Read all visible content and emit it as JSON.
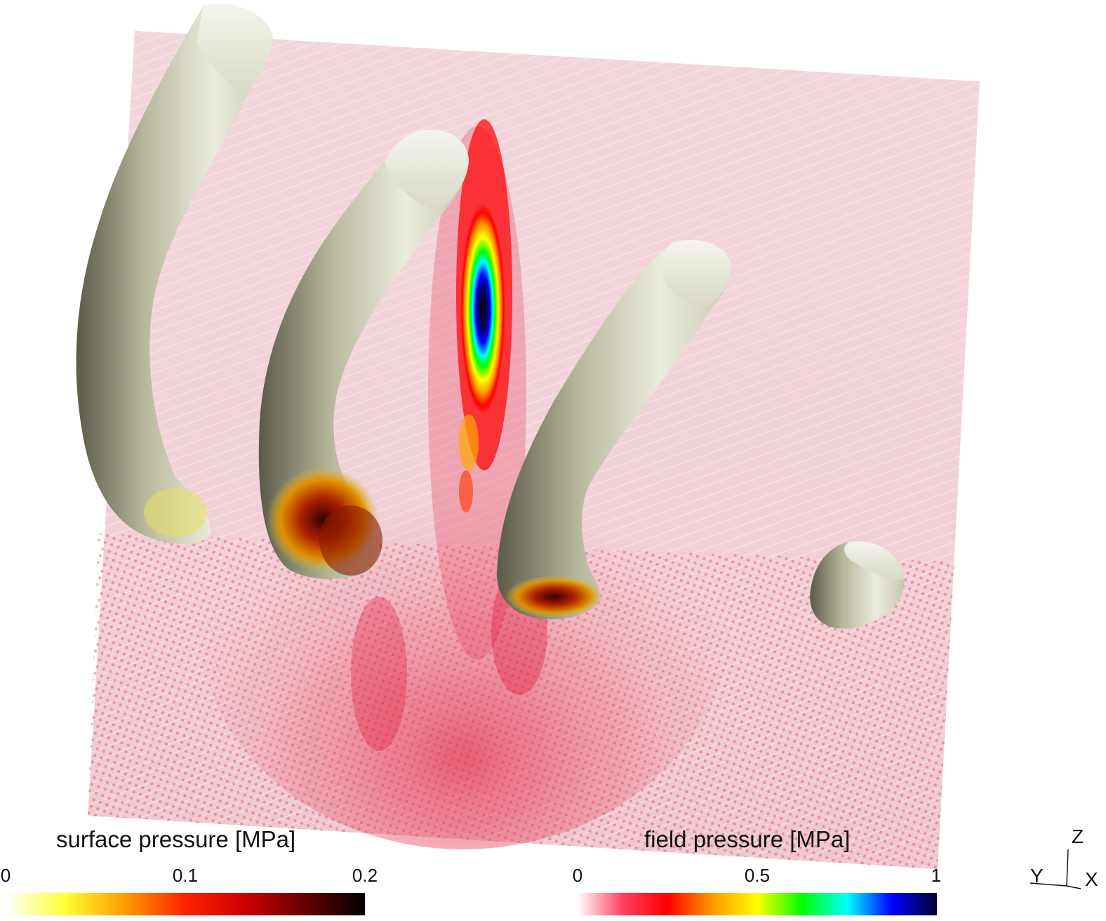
{
  "surface_colorbar": {
    "title": "surface pressure [MPa]",
    "ticks": [
      "0",
      "0.1",
      "0.2"
    ],
    "range": [
      0,
      0.2
    ],
    "colors": [
      "#ffffff",
      "#ffff33",
      "#ff9900",
      "#ff2200",
      "#cc0000",
      "#660000",
      "#000000"
    ]
  },
  "field_colorbar": {
    "title": "field pressure [MPa]",
    "ticks": [
      "0",
      "0.5",
      "1"
    ],
    "range": [
      0,
      1
    ],
    "colors": [
      "#ffffff",
      "#ff4060",
      "#ff0000",
      "#ff9900",
      "#ffff00",
      "#00ff00",
      "#00ffff",
      "#0000ff",
      "#000033"
    ]
  },
  "axes_triad": {
    "z": "Z",
    "y": "Y",
    "x": "X"
  },
  "scene": {
    "plane_color": "#f0e0e4",
    "bone_color": "#dcdccc",
    "focal_spot_colors": [
      "#ff0000",
      "#ffff00",
      "#00ff00",
      "#00ffff",
      "#0000ff",
      "#000000"
    ]
  }
}
